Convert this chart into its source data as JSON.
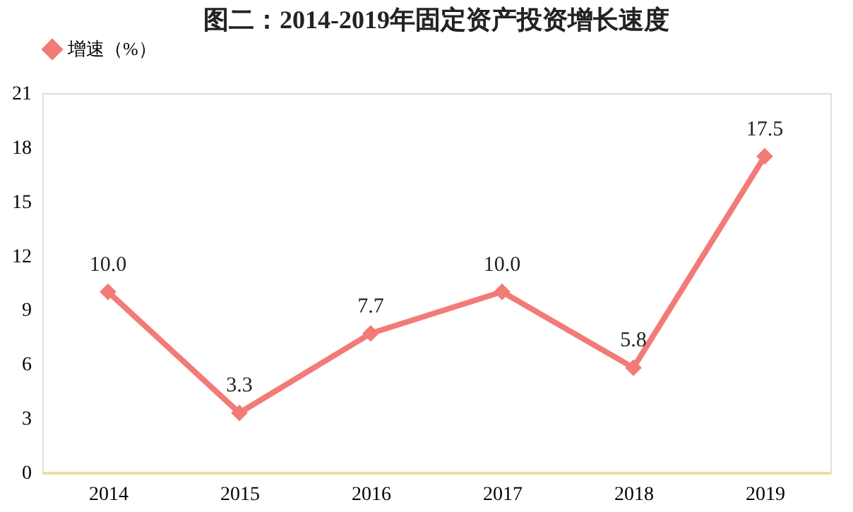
{
  "chart_data": {
    "type": "line",
    "title": "图二：2014-2019年固定资产投资增长速度",
    "categories": [
      "2014",
      "2015",
      "2016",
      "2017",
      "2018",
      "2019"
    ],
    "series": [
      {
        "name": "增速（%）",
        "color": "#f27b78",
        "values": [
          10.0,
          3.3,
          7.7,
          10.0,
          5.8,
          17.5
        ],
        "value_labels": [
          "10.0",
          "3.3",
          "7.7",
          "10.0",
          "5.8",
          "17.5"
        ]
      }
    ],
    "ylim": [
      0,
      21
    ],
    "yticks": [
      0,
      3,
      6,
      9,
      12,
      15,
      18,
      21
    ],
    "grid": false,
    "legend": "top",
    "marker": "diamond",
    "line_style": "solid"
  }
}
